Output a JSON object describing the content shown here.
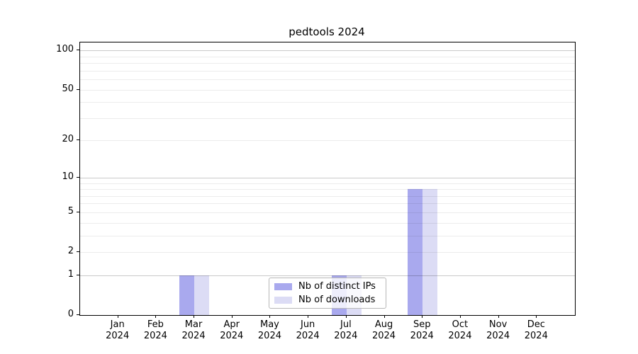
{
  "chart_data": {
    "type": "bar",
    "title": "pedtools 2024",
    "year_label": "2024",
    "categories": [
      "Jan",
      "Feb",
      "Mar",
      "Apr",
      "May",
      "Jun",
      "Jul",
      "Aug",
      "Sep",
      "Oct",
      "Nov",
      "Dec"
    ],
    "series": [
      {
        "name": "Nb of distinct IPs",
        "color": "#a9a9ee",
        "values": [
          0,
          0,
          1,
          0,
          0,
          0,
          1,
          0,
          8,
          0,
          0,
          0
        ]
      },
      {
        "name": "Nb of downloads",
        "color": "#dcdcf5",
        "values": [
          0,
          0,
          1,
          0,
          0,
          0,
          1,
          0,
          8,
          0,
          0,
          0
        ]
      }
    ],
    "yscale": "log1p",
    "ylim": [
      0,
      115
    ],
    "yticks": [
      0,
      1,
      2,
      5,
      10,
      20,
      50,
      100
    ],
    "grid": {
      "major_values": [
        1,
        10,
        100
      ],
      "minor_values": [
        2,
        3,
        4,
        5,
        6,
        7,
        8,
        9,
        20,
        30,
        40,
        50,
        60,
        70,
        80,
        90
      ]
    },
    "legend": {
      "position": "lower center overlap"
    },
    "colors": {
      "axis": "#000000",
      "background": "#ffffff",
      "grid_minor": "#ececec",
      "grid_major": "#c9c9c9"
    }
  }
}
